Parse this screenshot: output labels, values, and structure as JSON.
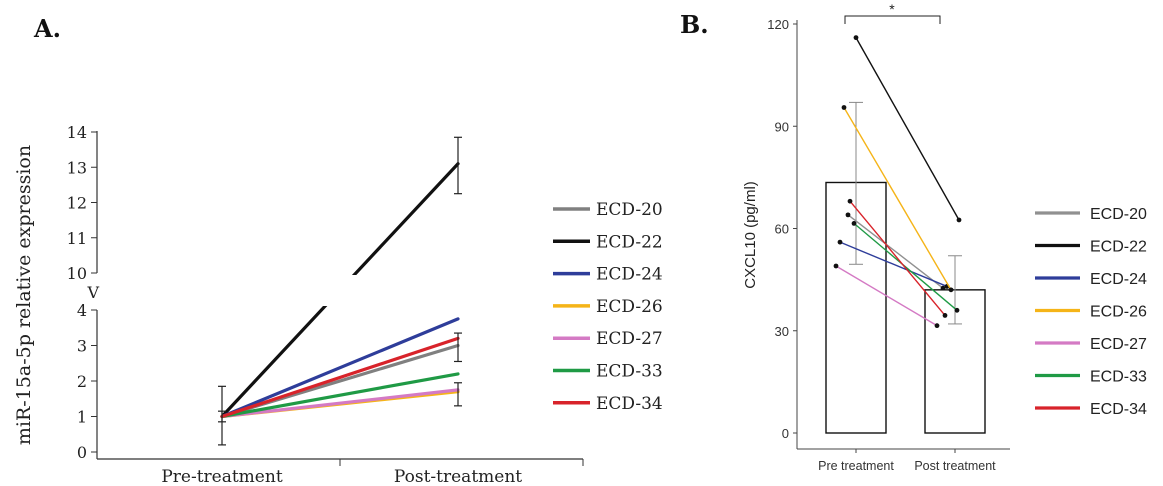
{
  "panels": {
    "a_label": "A.",
    "b_label": "B."
  },
  "chart_data": [
    {
      "type": "line",
      "ylabel": "miR-15a-5p relative expression",
      "xlabel": "",
      "categories": [
        "Pre-treatment",
        "Post-treatment"
      ],
      "y_ticks_lower": [
        "0",
        "1",
        "2",
        "3",
        "4"
      ],
      "y_ticks_upper": [
        "10",
        "11",
        "12",
        "13",
        "14"
      ],
      "axis_break_symbol": "V",
      "ylim": [
        0,
        14
      ],
      "series": [
        {
          "name": "ECD-20",
          "color": "#808080",
          "values": [
            1.0,
            3.0
          ]
        },
        {
          "name": "ECD-22",
          "color": "#111111",
          "values": [
            1.0,
            13.1
          ]
        },
        {
          "name": "ECD-24",
          "color": "#2e3d9a",
          "values": [
            1.0,
            3.75
          ]
        },
        {
          "name": "ECD-26",
          "color": "#f5b418",
          "values": [
            1.0,
            1.7
          ]
        },
        {
          "name": "ECD-27",
          "color": "#d47ac4",
          "values": [
            1.0,
            1.75
          ]
        },
        {
          "name": "ECD-33",
          "color": "#1f9a45",
          "values": [
            1.0,
            2.2
          ]
        },
        {
          "name": "ECD-34",
          "color": "#d8232a",
          "values": [
            1.0,
            3.2
          ]
        }
      ],
      "error_bars": [
        {
          "x": "Pre-treatment",
          "center": 1.0,
          "low": 0.2,
          "high": 1.85
        },
        {
          "x": "Pre-treatment",
          "center": 1.0,
          "low": 0.85,
          "high": 1.15
        },
        {
          "x": "Post-treatment",
          "center": 13.05,
          "low": 12.25,
          "high": 13.85
        },
        {
          "x": "Post-treatment",
          "center": 3.15,
          "low": 2.55,
          "high": 3.35
        },
        {
          "x": "Post-treatment",
          "center": 1.75,
          "low": 1.3,
          "high": 1.95
        }
      ]
    },
    {
      "type": "bar",
      "ylabel": "CXCL10 (pg/ml)",
      "xlabel": "",
      "categories": [
        "Pre treatment",
        "Post treatment"
      ],
      "values": [
        73.5,
        42.0
      ],
      "errors": [
        [
          49.5,
          97.0
        ],
        [
          32.0,
          52.0
        ]
      ],
      "y_ticks": [
        "0",
        "30",
        "60",
        "90",
        "120"
      ],
      "ylim": [
        0,
        120
      ],
      "significance": "*",
      "series": [
        {
          "name": "ECD-20",
          "color": "#909090",
          "values": [
            64.0,
            42.5
          ]
        },
        {
          "name": "ECD-22",
          "color": "#111111",
          "values": [
            116.0,
            62.5
          ]
        },
        {
          "name": "ECD-24",
          "color": "#2e3d9a",
          "values": [
            56.0,
            43.0
          ]
        },
        {
          "name": "ECD-26",
          "color": "#f5b418",
          "values": [
            95.5,
            42.0
          ]
        },
        {
          "name": "ECD-27",
          "color": "#d47ac4",
          "values": [
            49.0,
            31.5
          ]
        },
        {
          "name": "ECD-33",
          "color": "#1f9a45",
          "values": [
            61.5,
            36.0
          ]
        },
        {
          "name": "ECD-34",
          "color": "#d8232a",
          "values": [
            68.0,
            34.5
          ]
        }
      ]
    }
  ]
}
